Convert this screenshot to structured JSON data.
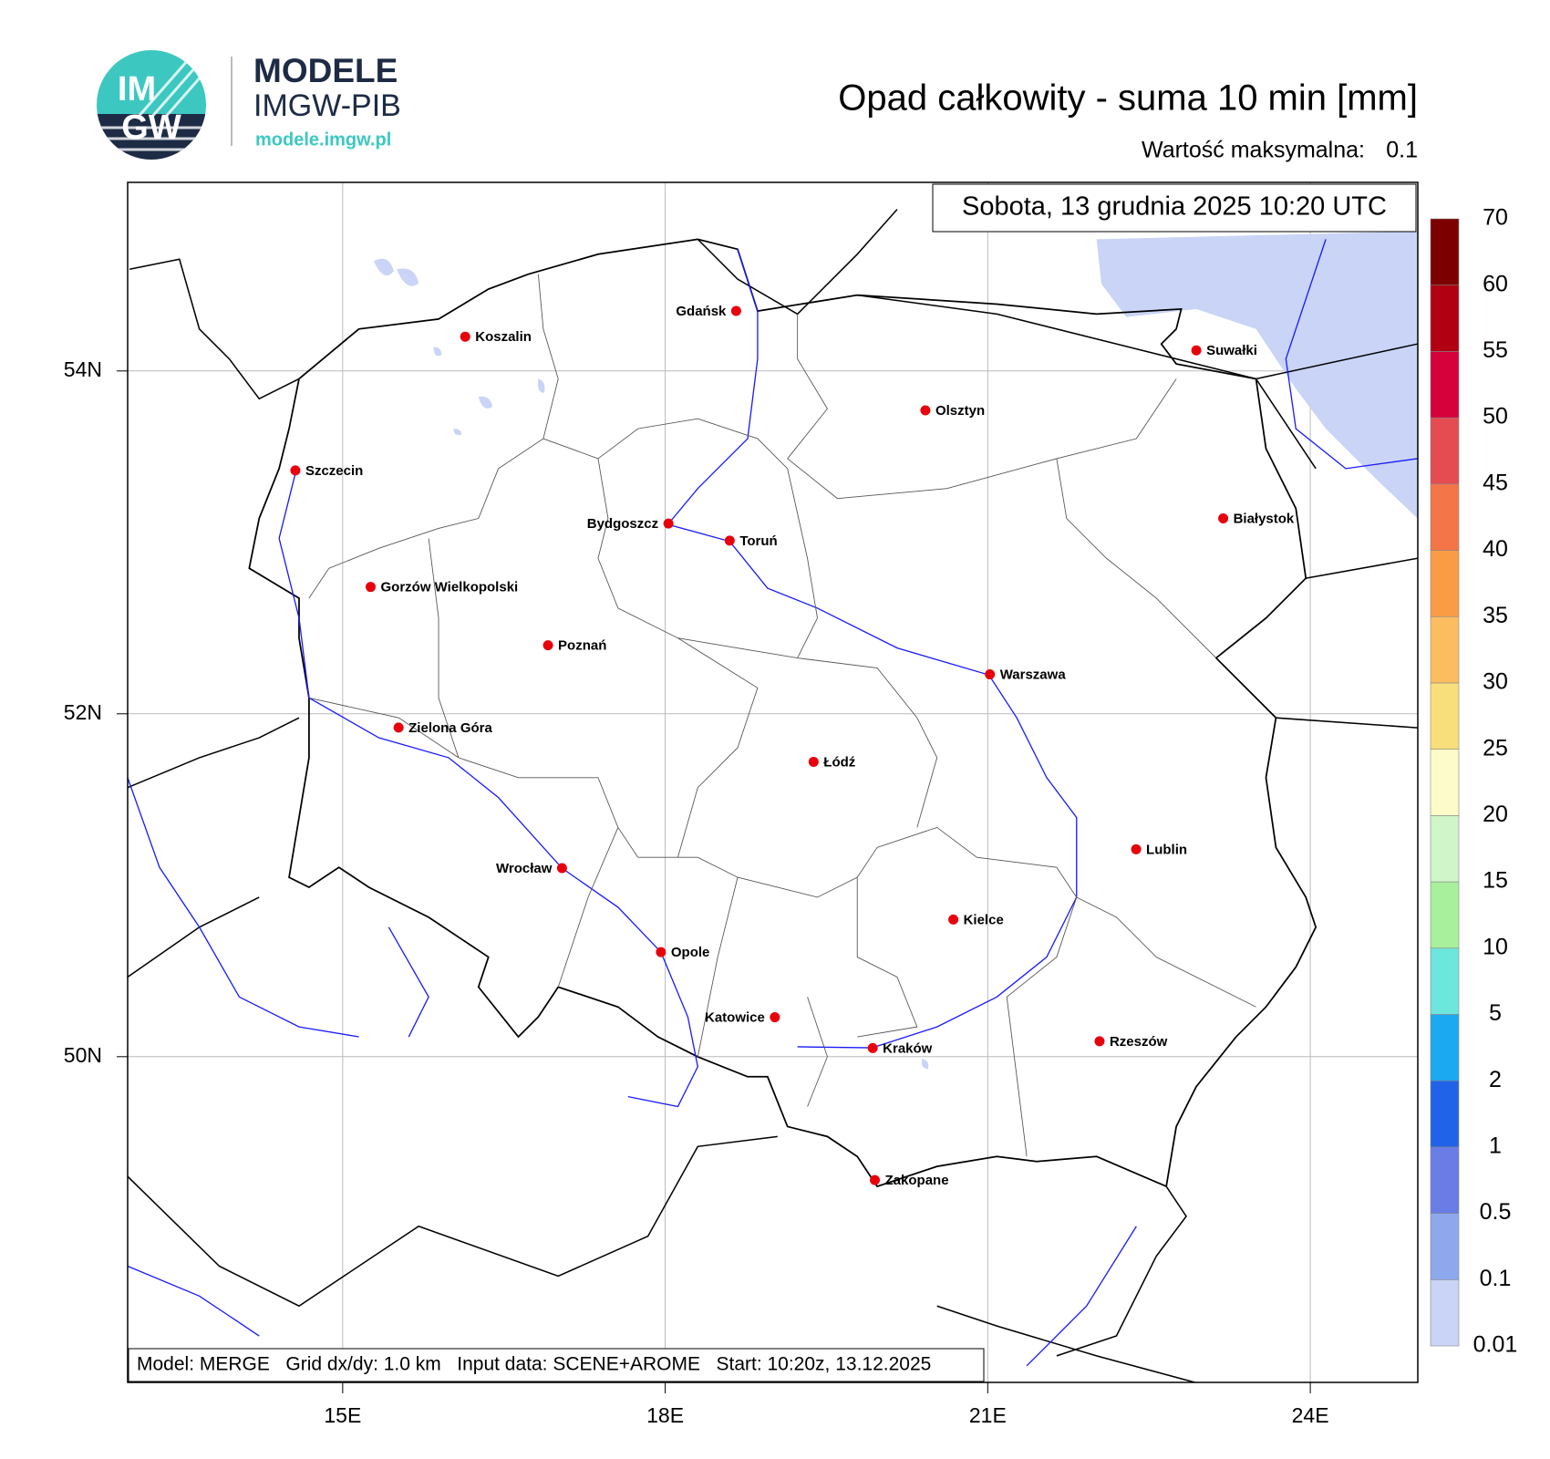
{
  "header": {
    "logo_top": "IM",
    "logo_bottom": "GW",
    "brand": "MODELE",
    "org": "IMGW-PIB",
    "url": "modele.imgw.pl"
  },
  "map": {
    "type": "map",
    "title": "Opad całkowity - suma 10 min [mm]",
    "max_label": "Wartość maksymalna:",
    "max_value": 0.1,
    "date": "Sobota, 13 grudnia 2025 10:20 UTC",
    "footer": "Model: MERGE   Grid dx/dy: 1.0 km   Input data: SCENE+AROME   Start: 10:20z, 13.12.2025",
    "xlim": [
      13.0,
      25.0
    ],
    "ylim": [
      48.1,
      55.1
    ],
    "xticks": [
      {
        "value": 15,
        "label": "15E"
      },
      {
        "value": 18,
        "label": "18E"
      },
      {
        "value": 21,
        "label": "21E"
      },
      {
        "value": 24,
        "label": "24E"
      }
    ],
    "yticks": [
      {
        "value": 50,
        "label": "50N"
      },
      {
        "value": 52,
        "label": "52N"
      },
      {
        "value": 54,
        "label": "54N"
      }
    ],
    "grid": true,
    "city_color": "#e8000b",
    "cities": [
      {
        "name": "Gdańsk",
        "lon": 18.66,
        "lat": 54.35,
        "anchor": "left"
      },
      {
        "name": "Koszalin",
        "lon": 16.14,
        "lat": 54.2,
        "anchor": "right"
      },
      {
        "name": "Suwałki",
        "lon": 22.94,
        "lat": 54.12,
        "anchor": "right"
      },
      {
        "name": "Olsztyn",
        "lon": 20.42,
        "lat": 53.77,
        "anchor": "right"
      },
      {
        "name": "Szczecin",
        "lon": 14.56,
        "lat": 53.42,
        "anchor": "right"
      },
      {
        "name": "Białystok",
        "lon": 23.19,
        "lat": 53.14,
        "anchor": "right"
      },
      {
        "name": "Bydgoszcz",
        "lon": 18.03,
        "lat": 53.11,
        "anchor": "left"
      },
      {
        "name": "Toruń",
        "lon": 18.6,
        "lat": 53.01,
        "anchor": "right"
      },
      {
        "name": "Gorzów Wielkopolski",
        "lon": 15.26,
        "lat": 52.74,
        "anchor": "right"
      },
      {
        "name": "Poznań",
        "lon": 16.91,
        "lat": 52.4,
        "anchor": "right"
      },
      {
        "name": "Warszawa",
        "lon": 21.02,
        "lat": 52.23,
        "anchor": "right"
      },
      {
        "name": "Zielona Góra",
        "lon": 15.52,
        "lat": 51.92,
        "anchor": "right"
      },
      {
        "name": "Łódź",
        "lon": 19.38,
        "lat": 51.72,
        "anchor": "right"
      },
      {
        "name": "Lublin",
        "lon": 22.38,
        "lat": 51.21,
        "anchor": "right"
      },
      {
        "name": "Wrocław",
        "lon": 17.04,
        "lat": 51.1,
        "anchor": "left"
      },
      {
        "name": "Kielce",
        "lon": 20.68,
        "lat": 50.8,
        "anchor": "right"
      },
      {
        "name": "Opole",
        "lon": 17.96,
        "lat": 50.61,
        "anchor": "right"
      },
      {
        "name": "Katowice",
        "lon": 19.02,
        "lat": 50.23,
        "anchor": "left"
      },
      {
        "name": "Kraków",
        "lon": 19.93,
        "lat": 50.05,
        "anchor": "right"
      },
      {
        "name": "Rzeszów",
        "lon": 22.04,
        "lat": 50.09,
        "anchor": "right"
      },
      {
        "name": "Zakopane",
        "lon": 19.95,
        "lat": 49.28,
        "anchor": "right"
      }
    ]
  },
  "colorbar": {
    "levels": [
      0.01,
      0.1,
      0.5,
      1,
      2,
      5,
      10,
      15,
      20,
      25,
      30,
      35,
      40,
      45,
      50,
      55,
      60,
      70
    ],
    "colors": [
      "#c9d4f6",
      "#8ea8ee",
      "#6a7de6",
      "#2163e8",
      "#1ba9f2",
      "#6de6dc",
      "#a8f09c",
      "#cff5c9",
      "#fdfbc8",
      "#f8df7c",
      "#fbbd60",
      "#f99c45",
      "#f47548",
      "#e54c52",
      "#d6003b",
      "#b00012",
      "#7d0000"
    ]
  }
}
